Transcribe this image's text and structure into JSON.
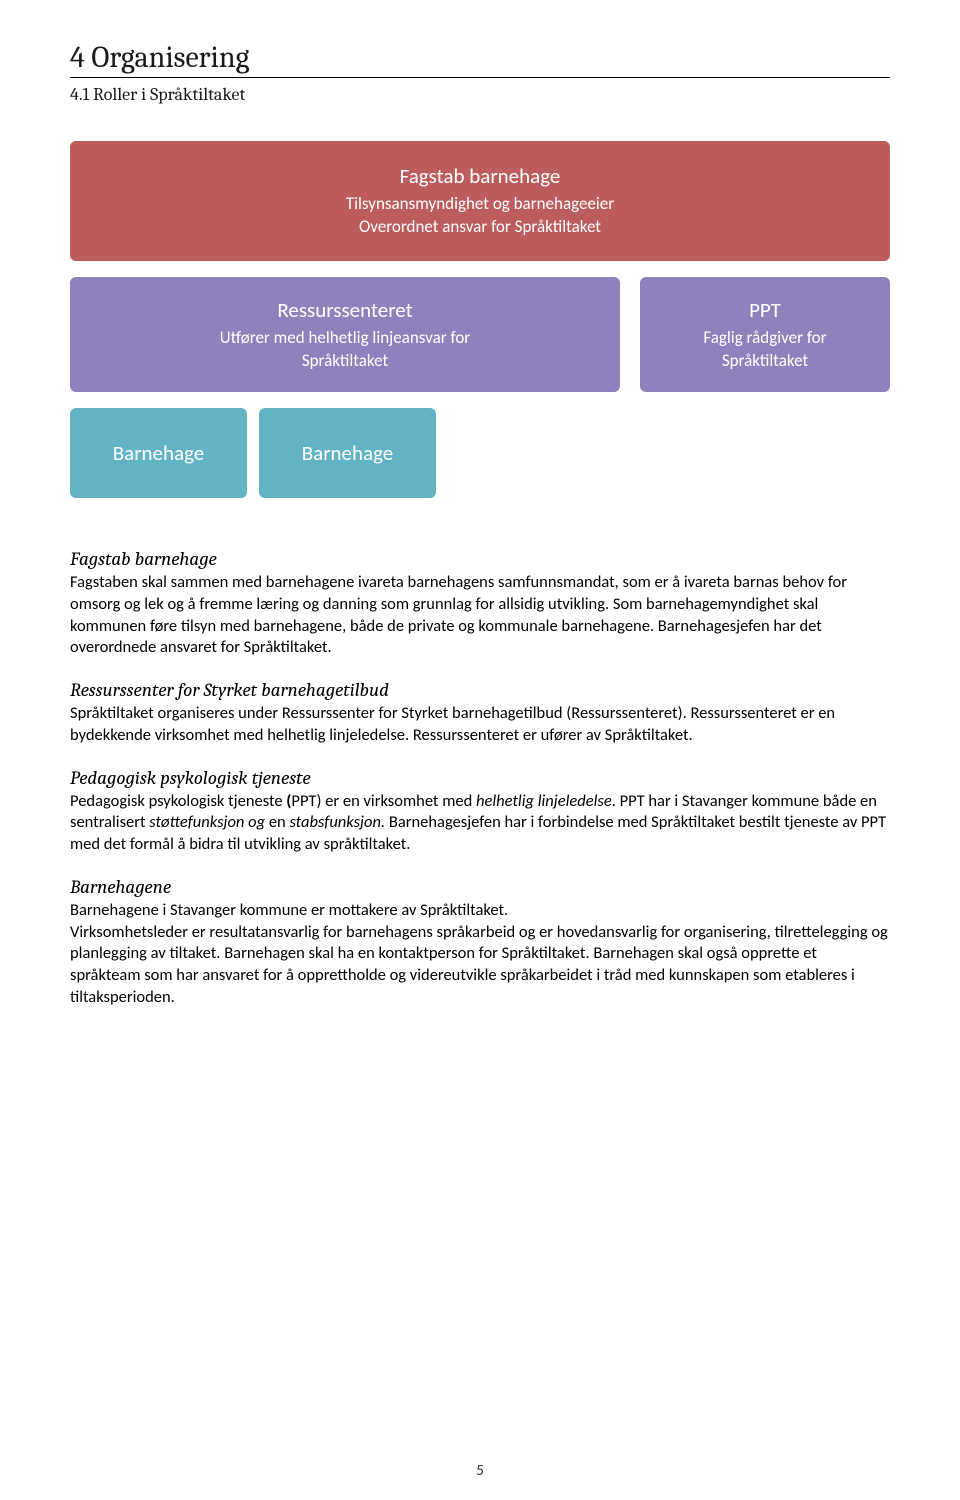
{
  "heading": "4 Organisering",
  "subheading": "4.1 Roller i Språktiltaket",
  "diagram": {
    "red": {
      "title": "Fagstab barnehage",
      "line1": "Tilsynsansmyndighet og barnehageeier",
      "line2": "Overordnet ansvar for Språktiltaket",
      "bg": "#bc5c5c"
    },
    "purple1": {
      "title": "Ressurssenteret",
      "line1": "Utfører med helhetlig linjeansvar for",
      "line2": "Språktiltaket",
      "bg": "#8f82bc"
    },
    "purple2": {
      "title": "PPT",
      "line1": "Faglig rådgiver for",
      "line2": "Språktiltaket",
      "bg": "#8f82bc"
    },
    "teal1": {
      "label": "Barnehage",
      "bg": "#62b4c4"
    },
    "teal2": {
      "label": "Barnehage",
      "bg": "#62b4c4"
    }
  },
  "sections": {
    "s1": {
      "title": "Fagstab barnehage",
      "p": "Fagstaben skal sammen med barnehagene ivareta barnehagens samfunnsmandat, som er å ivareta barnas behov for omsorg og lek og å fremme læring og danning som grunnlag for allsidig utvikling. Som barnehagemyndighet skal kommunen føre tilsyn med barnehagene, både de private og kommunale barnehagene. Barnehagesjefen har det overordnede ansvaret for Språktiltaket."
    },
    "s2": {
      "title": "Ressurssenter for Styrket barnehagetilbud",
      "p": "Språktiltaket organiseres under Ressurssenter for Styrket barnehagetilbud (Ressurssenteret). Ressurssenteret er en bydekkende virksomhet med helhetlig linjeledelse. Ressurssenteret er ufører av Språktiltaket."
    },
    "s3": {
      "title": "Pedagogisk psykologisk tjeneste",
      "p_pre": "Pedagogisk psykologisk tjeneste ",
      "p_bold1": "(",
      "p_mid1": "PPT) er en virksomhet med ",
      "p_it1": "helhetlig linjeledelse",
      "p_mid2": ". PPT har i Stavanger kommune både en sentralisert ",
      "p_it2": "støttefunksjon og",
      "p_mid3": " en ",
      "p_it3": "stabsfunksjon.",
      "p_end": " Barnehagesjefen har i forbindelse med Språktiltaket bestilt tjeneste av PPT med det formål å bidra til utvikling av språktiltaket."
    },
    "s4": {
      "title": "Barnehagene",
      "p": "Barnehagene i Stavanger kommune er mottakere av Språktiltaket.\nVirksomhetsleder er resultatansvarlig for barnehagens språkarbeid og er hovedansvarlig for organisering, tilrettelegging og planlegging av tiltaket. Barnehagen skal ha en kontaktperson for Språktiltaket. Barnehagen skal også opprette et språkteam som har ansvaret for å opprettholde og videreutvikle språkarbeidet i tråd med kunnskapen som etableres i tiltaksperioden."
    }
  },
  "pageNumber": "5",
  "colors": {
    "text": "#000000",
    "bg": "#ffffff",
    "red": "#bc5c5c",
    "purple": "#8f82bc",
    "teal": "#62b4c4"
  },
  "fonts": {
    "heading_family": "Cambria",
    "body_family": "Calibri",
    "heading_size_pt": 22,
    "subheading_size_pt": 14,
    "section_title_size_pt": 14,
    "body_size_pt": 12
  }
}
